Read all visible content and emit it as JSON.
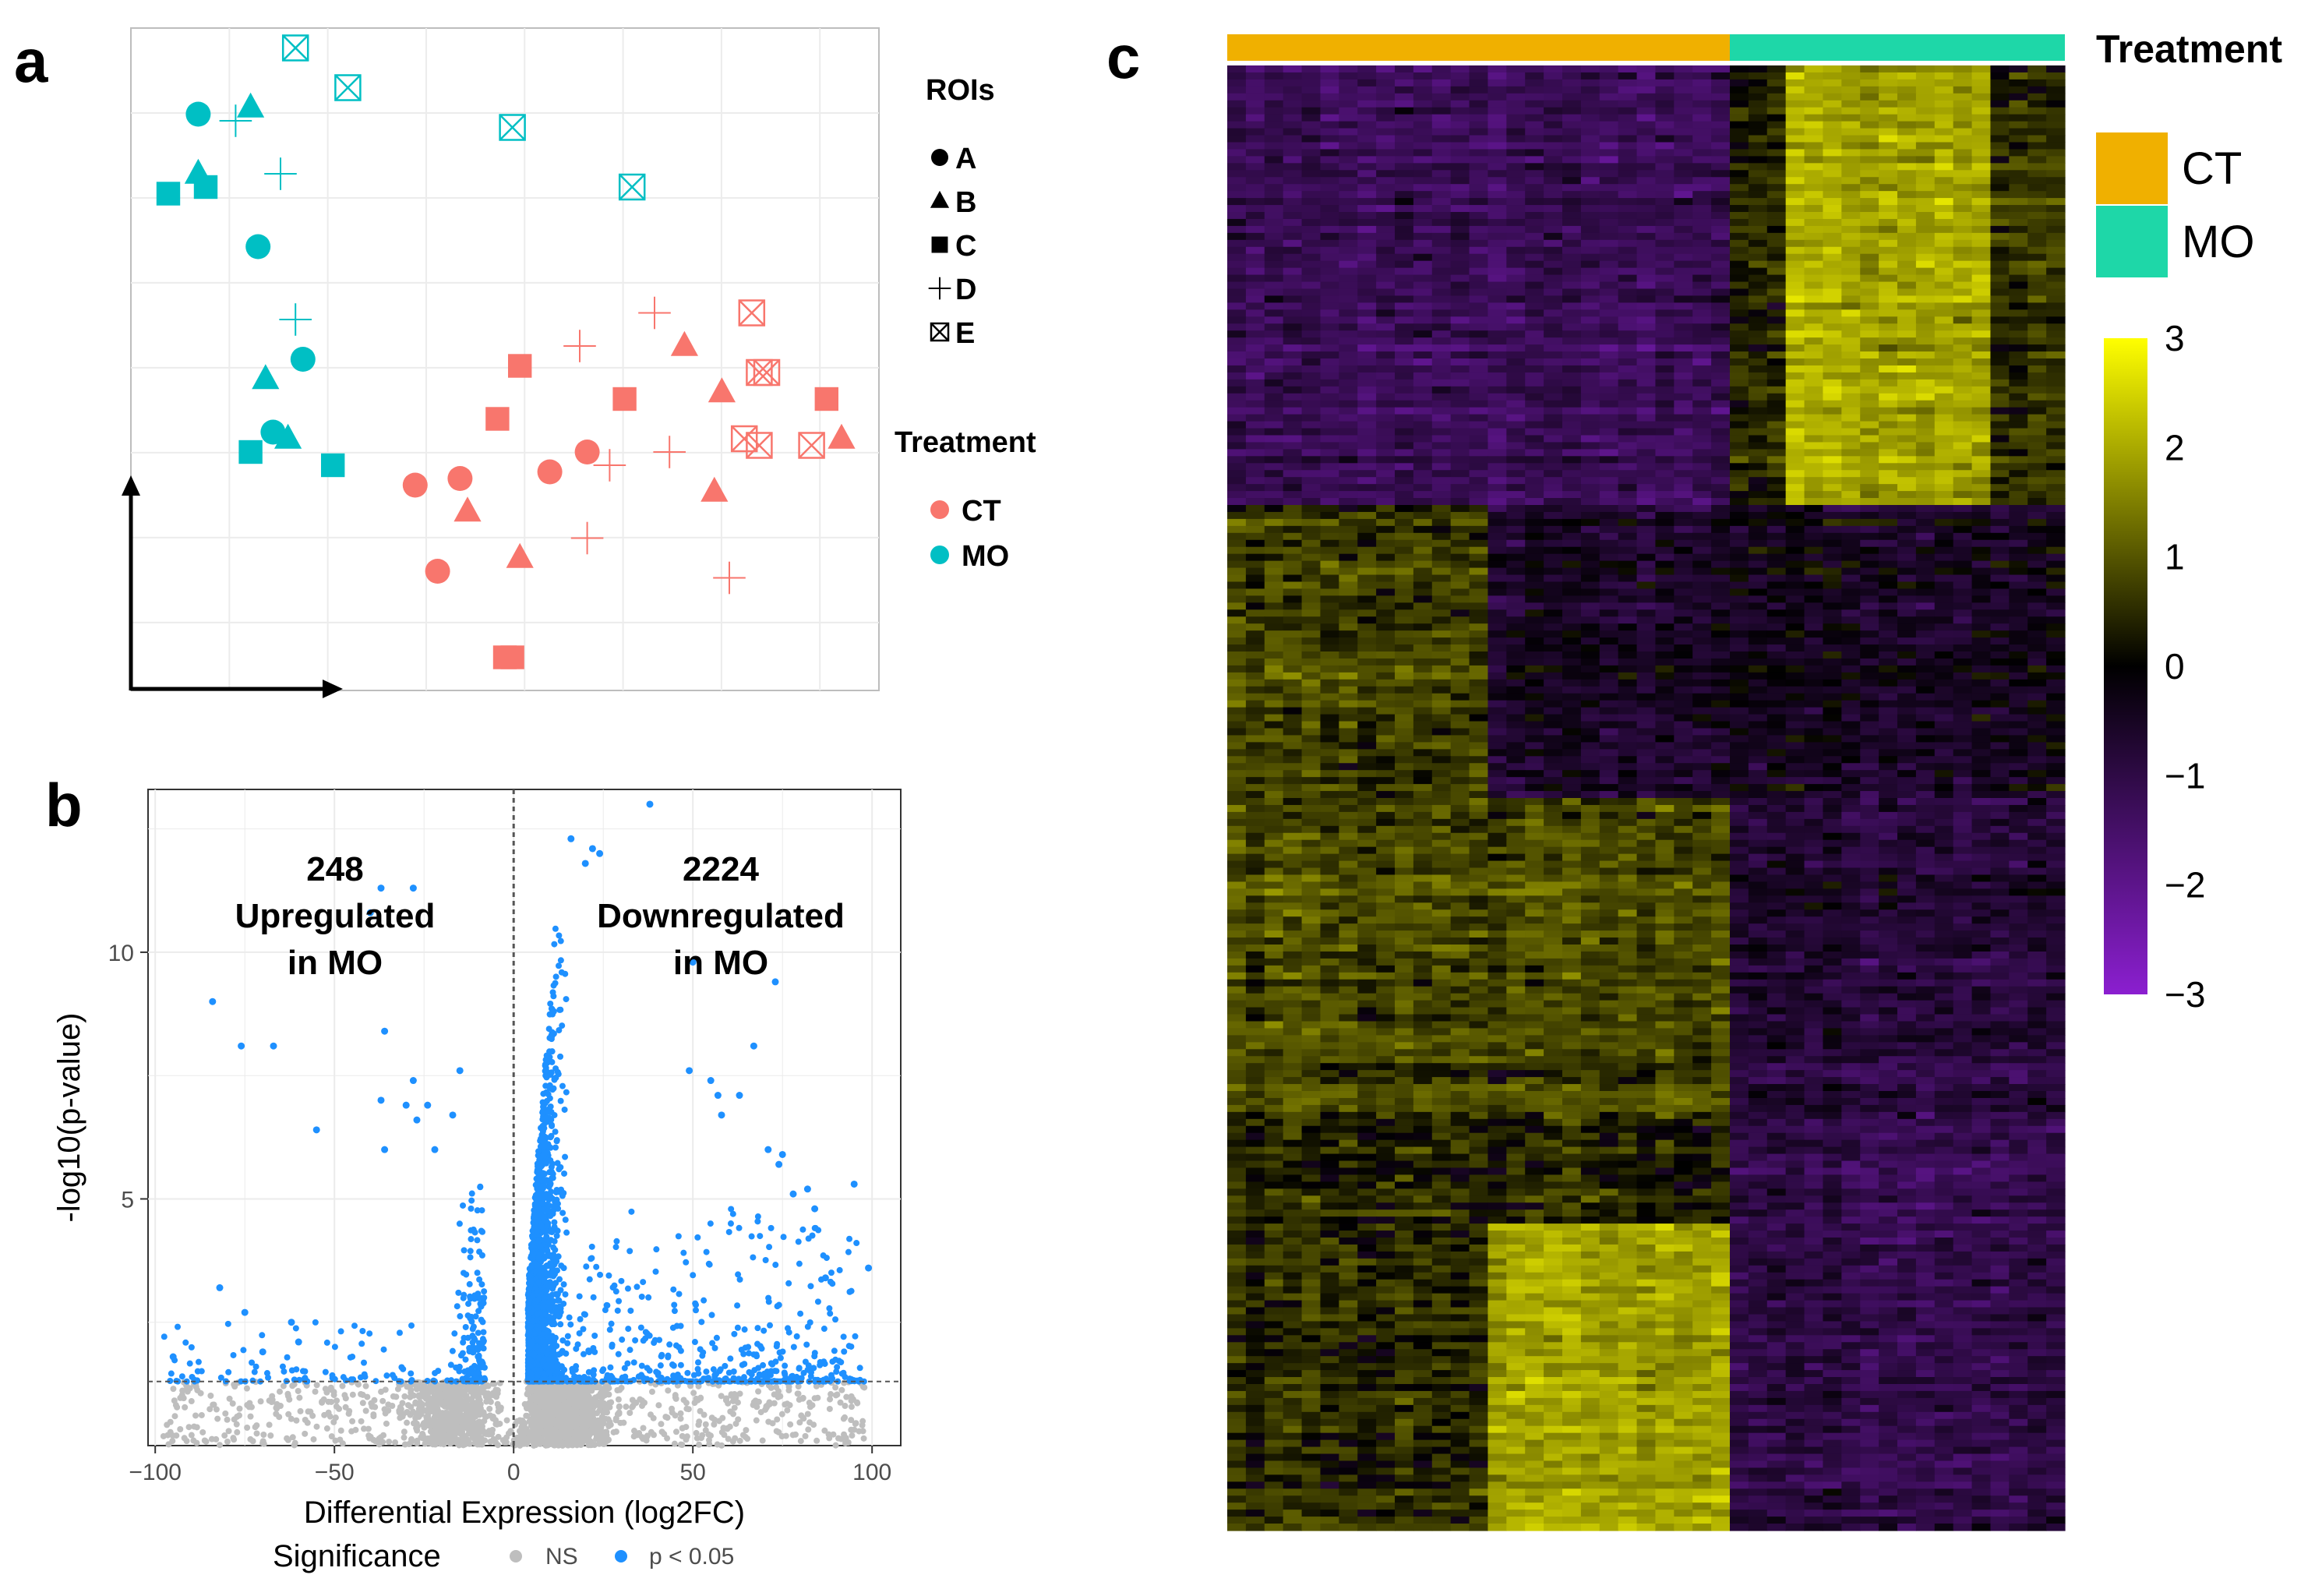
{
  "panels": {
    "a": "a",
    "b": "b",
    "c": "c"
  },
  "colors": {
    "CT": "#F8766D",
    "MO": "#00BFC4",
    "sig": "#1E90FF",
    "ns": "#BEBEBE",
    "heat_CT": "#F0B000",
    "heat_MO": "#1ED7A8",
    "heat_low": "#8B1FD0",
    "heat_mid": "#000000",
    "heat_high": "#FFFF00"
  },
  "chart_data": [
    {
      "panel": "a",
      "type": "scatter",
      "title": "",
      "xlabel": "",
      "ylabel": "",
      "legend": {
        "rois_title": "ROIs",
        "rois": [
          {
            "label": "A",
            "shape": "circle"
          },
          {
            "label": "B",
            "shape": "triangle"
          },
          {
            "label": "C",
            "shape": "square"
          },
          {
            "label": "D",
            "shape": "plus"
          },
          {
            "label": "E",
            "shape": "boxcross"
          }
        ],
        "treatment_title": "Treatment",
        "treatment": [
          {
            "label": "CT"
          },
          {
            "label": "MO"
          }
        ],
        "placement": "right"
      },
      "xlim": [
        0,
        100
      ],
      "ylim": [
        0,
        100
      ],
      "points": [
        {
          "x": 9,
          "y": 87,
          "roi": "A",
          "trt": "MO"
        },
        {
          "x": 17,
          "y": 67,
          "roi": "A",
          "trt": "MO"
        },
        {
          "x": 23,
          "y": 50,
          "roi": "A",
          "trt": "MO"
        },
        {
          "x": 19,
          "y": 39,
          "roi": "A",
          "trt": "MO"
        },
        {
          "x": 16,
          "y": 88,
          "roi": "B",
          "trt": "MO"
        },
        {
          "x": 9,
          "y": 78,
          "roi": "B",
          "trt": "MO"
        },
        {
          "x": 18,
          "y": 47,
          "roi": "B",
          "trt": "MO"
        },
        {
          "x": 21,
          "y": 38,
          "roi": "B",
          "trt": "MO"
        },
        {
          "x": 5,
          "y": 75,
          "roi": "C",
          "trt": "MO"
        },
        {
          "x": 10,
          "y": 76,
          "roi": "C",
          "trt": "MO"
        },
        {
          "x": 16,
          "y": 36,
          "roi": "C",
          "trt": "MO"
        },
        {
          "x": 27,
          "y": 34,
          "roi": "C",
          "trt": "MO"
        },
        {
          "x": 14,
          "y": 86,
          "roi": "D",
          "trt": "MO"
        },
        {
          "x": 20,
          "y": 78,
          "roi": "D",
          "trt": "MO"
        },
        {
          "x": 22,
          "y": 56,
          "roi": "D",
          "trt": "MO"
        },
        {
          "x": 22,
          "y": 97,
          "roi": "E",
          "trt": "MO"
        },
        {
          "x": 29,
          "y": 91,
          "roi": "E",
          "trt": "MO"
        },
        {
          "x": 51,
          "y": 85,
          "roi": "E",
          "trt": "MO"
        },
        {
          "x": 67,
          "y": 76,
          "roi": "E",
          "trt": "MO"
        },
        {
          "x": 38,
          "y": 31,
          "roi": "A",
          "trt": "CT"
        },
        {
          "x": 44,
          "y": 32,
          "roi": "A",
          "trt": "CT"
        },
        {
          "x": 56,
          "y": 33,
          "roi": "A",
          "trt": "CT"
        },
        {
          "x": 61,
          "y": 36,
          "roi": "A",
          "trt": "CT"
        },
        {
          "x": 41,
          "y": 18,
          "roi": "A",
          "trt": "CT"
        },
        {
          "x": 45,
          "y": 27,
          "roi": "B",
          "trt": "CT"
        },
        {
          "x": 52,
          "y": 20,
          "roi": "B",
          "trt": "CT"
        },
        {
          "x": 74,
          "y": 52,
          "roi": "B",
          "trt": "CT"
        },
        {
          "x": 79,
          "y": 45,
          "roi": "B",
          "trt": "CT"
        },
        {
          "x": 78,
          "y": 30,
          "roi": "B",
          "trt": "CT"
        },
        {
          "x": 95,
          "y": 38,
          "roi": "B",
          "trt": "CT"
        },
        {
          "x": 52,
          "y": 49,
          "roi": "C",
          "trt": "CT"
        },
        {
          "x": 49,
          "y": 41,
          "roi": "C",
          "trt": "CT"
        },
        {
          "x": 66,
          "y": 44,
          "roi": "C",
          "trt": "CT"
        },
        {
          "x": 93,
          "y": 44,
          "roi": "C",
          "trt": "CT"
        },
        {
          "x": 50,
          "y": 5,
          "roi": "C",
          "trt": "CT"
        },
        {
          "x": 51,
          "y": 5,
          "roi": "C",
          "trt": "CT"
        },
        {
          "x": 60,
          "y": 52,
          "roi": "D",
          "trt": "CT"
        },
        {
          "x": 70,
          "y": 57,
          "roi": "D",
          "trt": "CT"
        },
        {
          "x": 64,
          "y": 34,
          "roi": "D",
          "trt": "CT"
        },
        {
          "x": 72,
          "y": 36,
          "roi": "D",
          "trt": "CT"
        },
        {
          "x": 61,
          "y": 23,
          "roi": "D",
          "trt": "CT"
        },
        {
          "x": 80,
          "y": 17,
          "roi": "D",
          "trt": "CT"
        },
        {
          "x": 83,
          "y": 57,
          "roi": "E",
          "trt": "CT"
        },
        {
          "x": 85,
          "y": 48,
          "roi": "E",
          "trt": "CT"
        },
        {
          "x": 84,
          "y": 48,
          "roi": "E",
          "trt": "CT"
        },
        {
          "x": 82,
          "y": 38,
          "roi": "E",
          "trt": "CT"
        },
        {
          "x": 84,
          "y": 37,
          "roi": "E",
          "trt": "CT"
        },
        {
          "x": 91,
          "y": 37,
          "roi": "E",
          "trt": "CT"
        }
      ]
    },
    {
      "panel": "b",
      "type": "scatter",
      "title": "",
      "xlabel": "Differential Expression (log2FC)",
      "ylabel": "-log10(p-value)",
      "xlim": [
        -102,
        108
      ],
      "ylim": [
        0,
        13.3
      ],
      "xticks": [
        -100,
        -50,
        0,
        50,
        100
      ],
      "xtick_labels": [
        "−100",
        "−50",
        "0",
        "50",
        "100"
      ],
      "yticks": [
        5,
        10
      ],
      "ytick_labels": [
        "5",
        "10"
      ],
      "threshold": 1.3,
      "vline": 0,
      "legend": {
        "title": "Significance",
        "entries": [
          {
            "label": "NS"
          },
          {
            "label": "p < 0.05"
          }
        ],
        "placement": "bottom"
      },
      "annotations": {
        "left_count": "248",
        "left_line1": "Upregulated",
        "left_line2": "in MO",
        "right_count": "2224",
        "right_line1": "Downregulated",
        "right_line2": "in MO"
      },
      "highlight_points": [
        {
          "x": 38,
          "y": 13.0
        },
        {
          "x": 16,
          "y": 12.3
        },
        {
          "x": 22,
          "y": 12.1
        },
        {
          "x": 24,
          "y": 12.0
        },
        {
          "x": 20,
          "y": 11.8
        },
        {
          "x": -37,
          "y": 11.3
        },
        {
          "x": -28,
          "y": 11.3
        },
        {
          "x": -40,
          "y": 10.8
        },
        {
          "x": 50,
          "y": 9.8
        },
        {
          "x": 73,
          "y": 9.4
        },
        {
          "x": -84,
          "y": 9.0
        },
        {
          "x": -76,
          "y": 8.1
        },
        {
          "x": -67,
          "y": 8.1
        },
        {
          "x": -36,
          "y": 8.4
        },
        {
          "x": 67,
          "y": 8.1
        },
        {
          "x": 49,
          "y": 7.6
        },
        {
          "x": -15,
          "y": 7.6
        },
        {
          "x": -28,
          "y": 7.4
        },
        {
          "x": 55,
          "y": 7.4
        },
        {
          "x": 57,
          "y": 7.1
        },
        {
          "x": 63,
          "y": 7.1
        },
        {
          "x": -37,
          "y": 7.0
        },
        {
          "x": -30,
          "y": 6.9
        },
        {
          "x": -24,
          "y": 6.9
        },
        {
          "x": -27,
          "y": 6.6
        },
        {
          "x": -17,
          "y": 6.7
        },
        {
          "x": 58,
          "y": 6.7
        },
        {
          "x": -55,
          "y": 6.4
        },
        {
          "x": -36,
          "y": 6.0
        },
        {
          "x": -22,
          "y": 6.0
        },
        {
          "x": 71,
          "y": 6.0
        },
        {
          "x": 75,
          "y": 5.9
        },
        {
          "x": 74,
          "y": 5.7
        },
        {
          "x": 78,
          "y": 5.1
        },
        {
          "x": 95,
          "y": 5.3
        },
        {
          "x": 82,
          "y": 5.2
        },
        {
          "x": 84,
          "y": 4.8
        },
        {
          "x": 99,
          "y": 3.6
        },
        {
          "x": 87,
          "y": 3.4
        },
        {
          "x": -82,
          "y": 3.2
        },
        {
          "x": -75,
          "y": 2.7
        },
        {
          "x": -95,
          "y": 1.8
        },
        {
          "x": -70,
          "y": 1.9
        },
        {
          "x": -62,
          "y": 2.5
        },
        {
          "x": -60,
          "y": 2.1
        }
      ],
      "point_counts": {
        "left": 248,
        "right": 2224
      }
    },
    {
      "panel": "c",
      "type": "heatmap",
      "title": "",
      "columns_CT": 27,
      "columns_MO": 18,
      "gene_rows": 210,
      "annotation_title": "Treatment",
      "annotation_legend": [
        {
          "label": "CT"
        },
        {
          "label": "MO"
        }
      ],
      "colorbar": {
        "range": [
          -3,
          3
        ],
        "ticks": [
          3,
          2,
          1,
          0,
          -1,
          -2,
          -3
        ],
        "tick_labels": [
          "3",
          "2",
          "1",
          "0",
          "−1",
          "−2",
          "−3"
        ]
      },
      "blocks": [
        {
          "rows": [
            0,
            63
          ],
          "cols_CT": [
            0,
            27
          ],
          "level_CT": -1.1,
          "level_MO": 1.8
        },
        {
          "rows": [
            63,
            105
          ],
          "cols_CT": [
            0,
            27
          ],
          "level_CT": 0.6,
          "level_MO": -0.3
        },
        {
          "rows": [
            105,
            150
          ],
          "cols_CT": [
            0,
            27
          ],
          "level_CT": 0.7,
          "level_MO": -0.6
        },
        {
          "rows": [
            150,
            210
          ],
          "cols_CT": [
            0,
            27
          ],
          "level_CT": 0.3,
          "level_MO": -0.9
        }
      ]
    }
  ]
}
